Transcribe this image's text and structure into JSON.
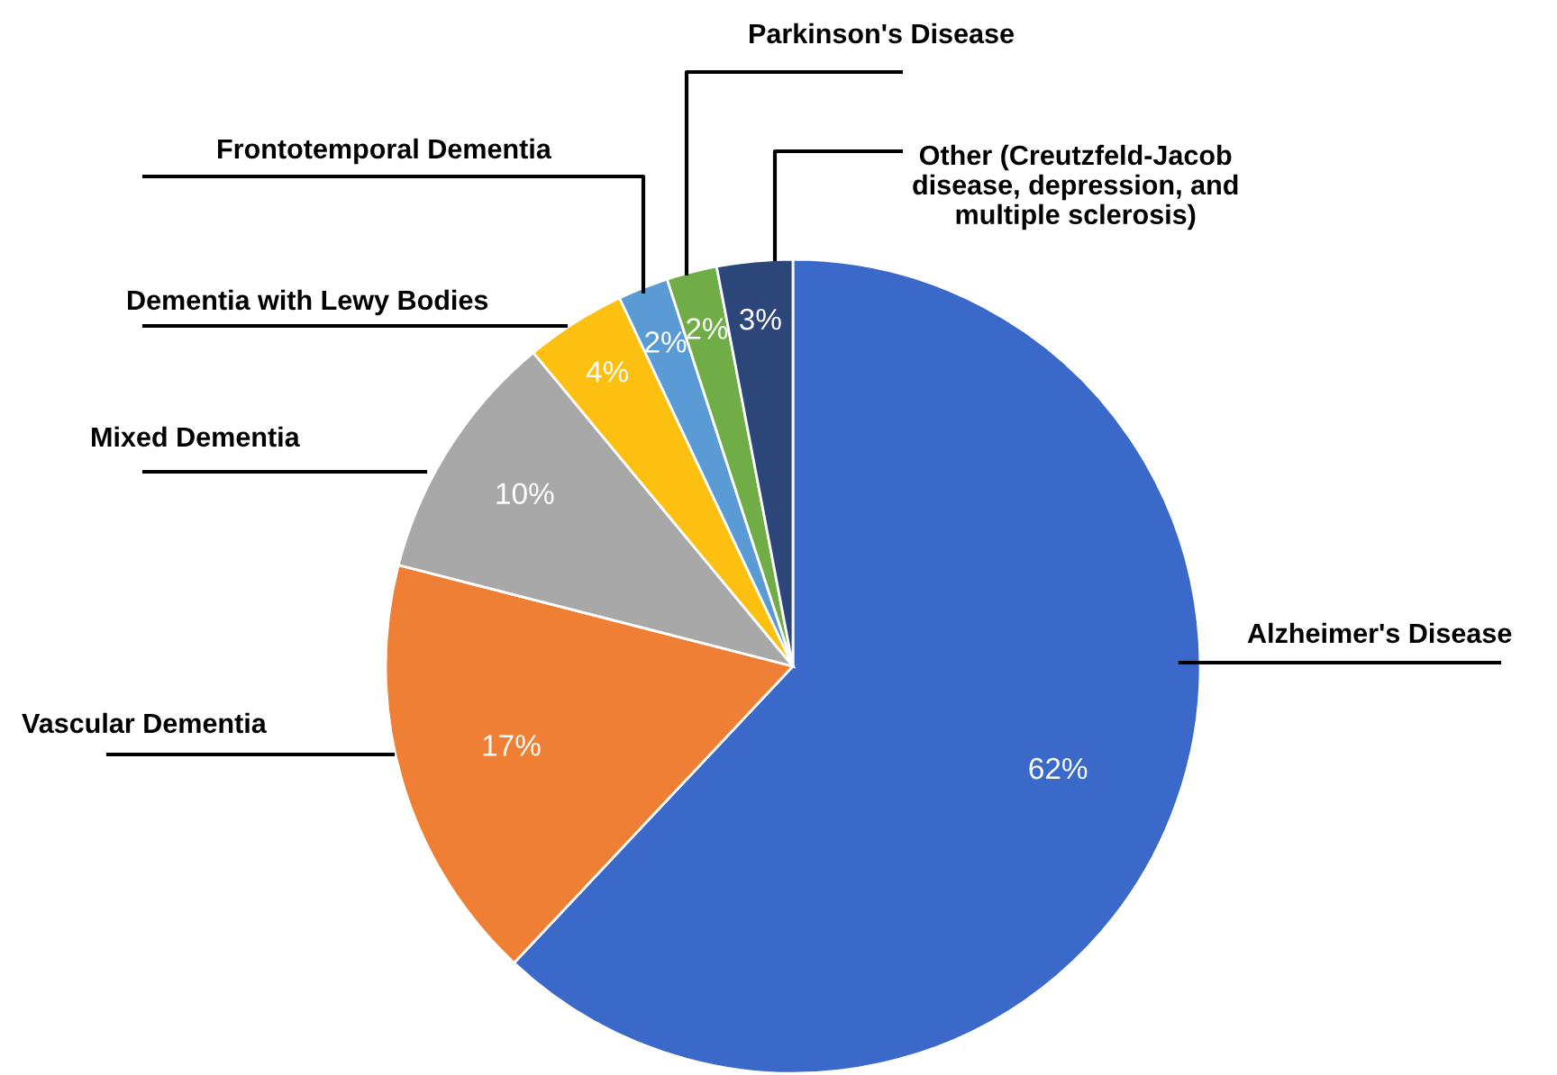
{
  "chart_data": {
    "type": "pie",
    "categories": [
      "Alzheimer's Disease",
      "Vascular Dementia",
      "Mixed Dementia",
      "Dementia with Lewy Bodies",
      "Frontotemporal Dementia",
      "Parkinson's Disease",
      "Other (Creutzfeld-Jacob\ndisease, depression, and\nmultiple sclerosis)"
    ],
    "values": [
      62,
      17,
      10,
      4,
      2,
      2,
      3
    ],
    "colors": [
      "#3a69c9",
      "#ee7f35",
      "#a8a8a8",
      "#fdc010",
      "#5b9bd5",
      "#70ad47",
      "#2c4679"
    ],
    "value_labels": [
      "62%",
      "17%",
      "10%",
      "4%",
      "2%",
      "2%",
      "3%"
    ],
    "legend": false
  }
}
